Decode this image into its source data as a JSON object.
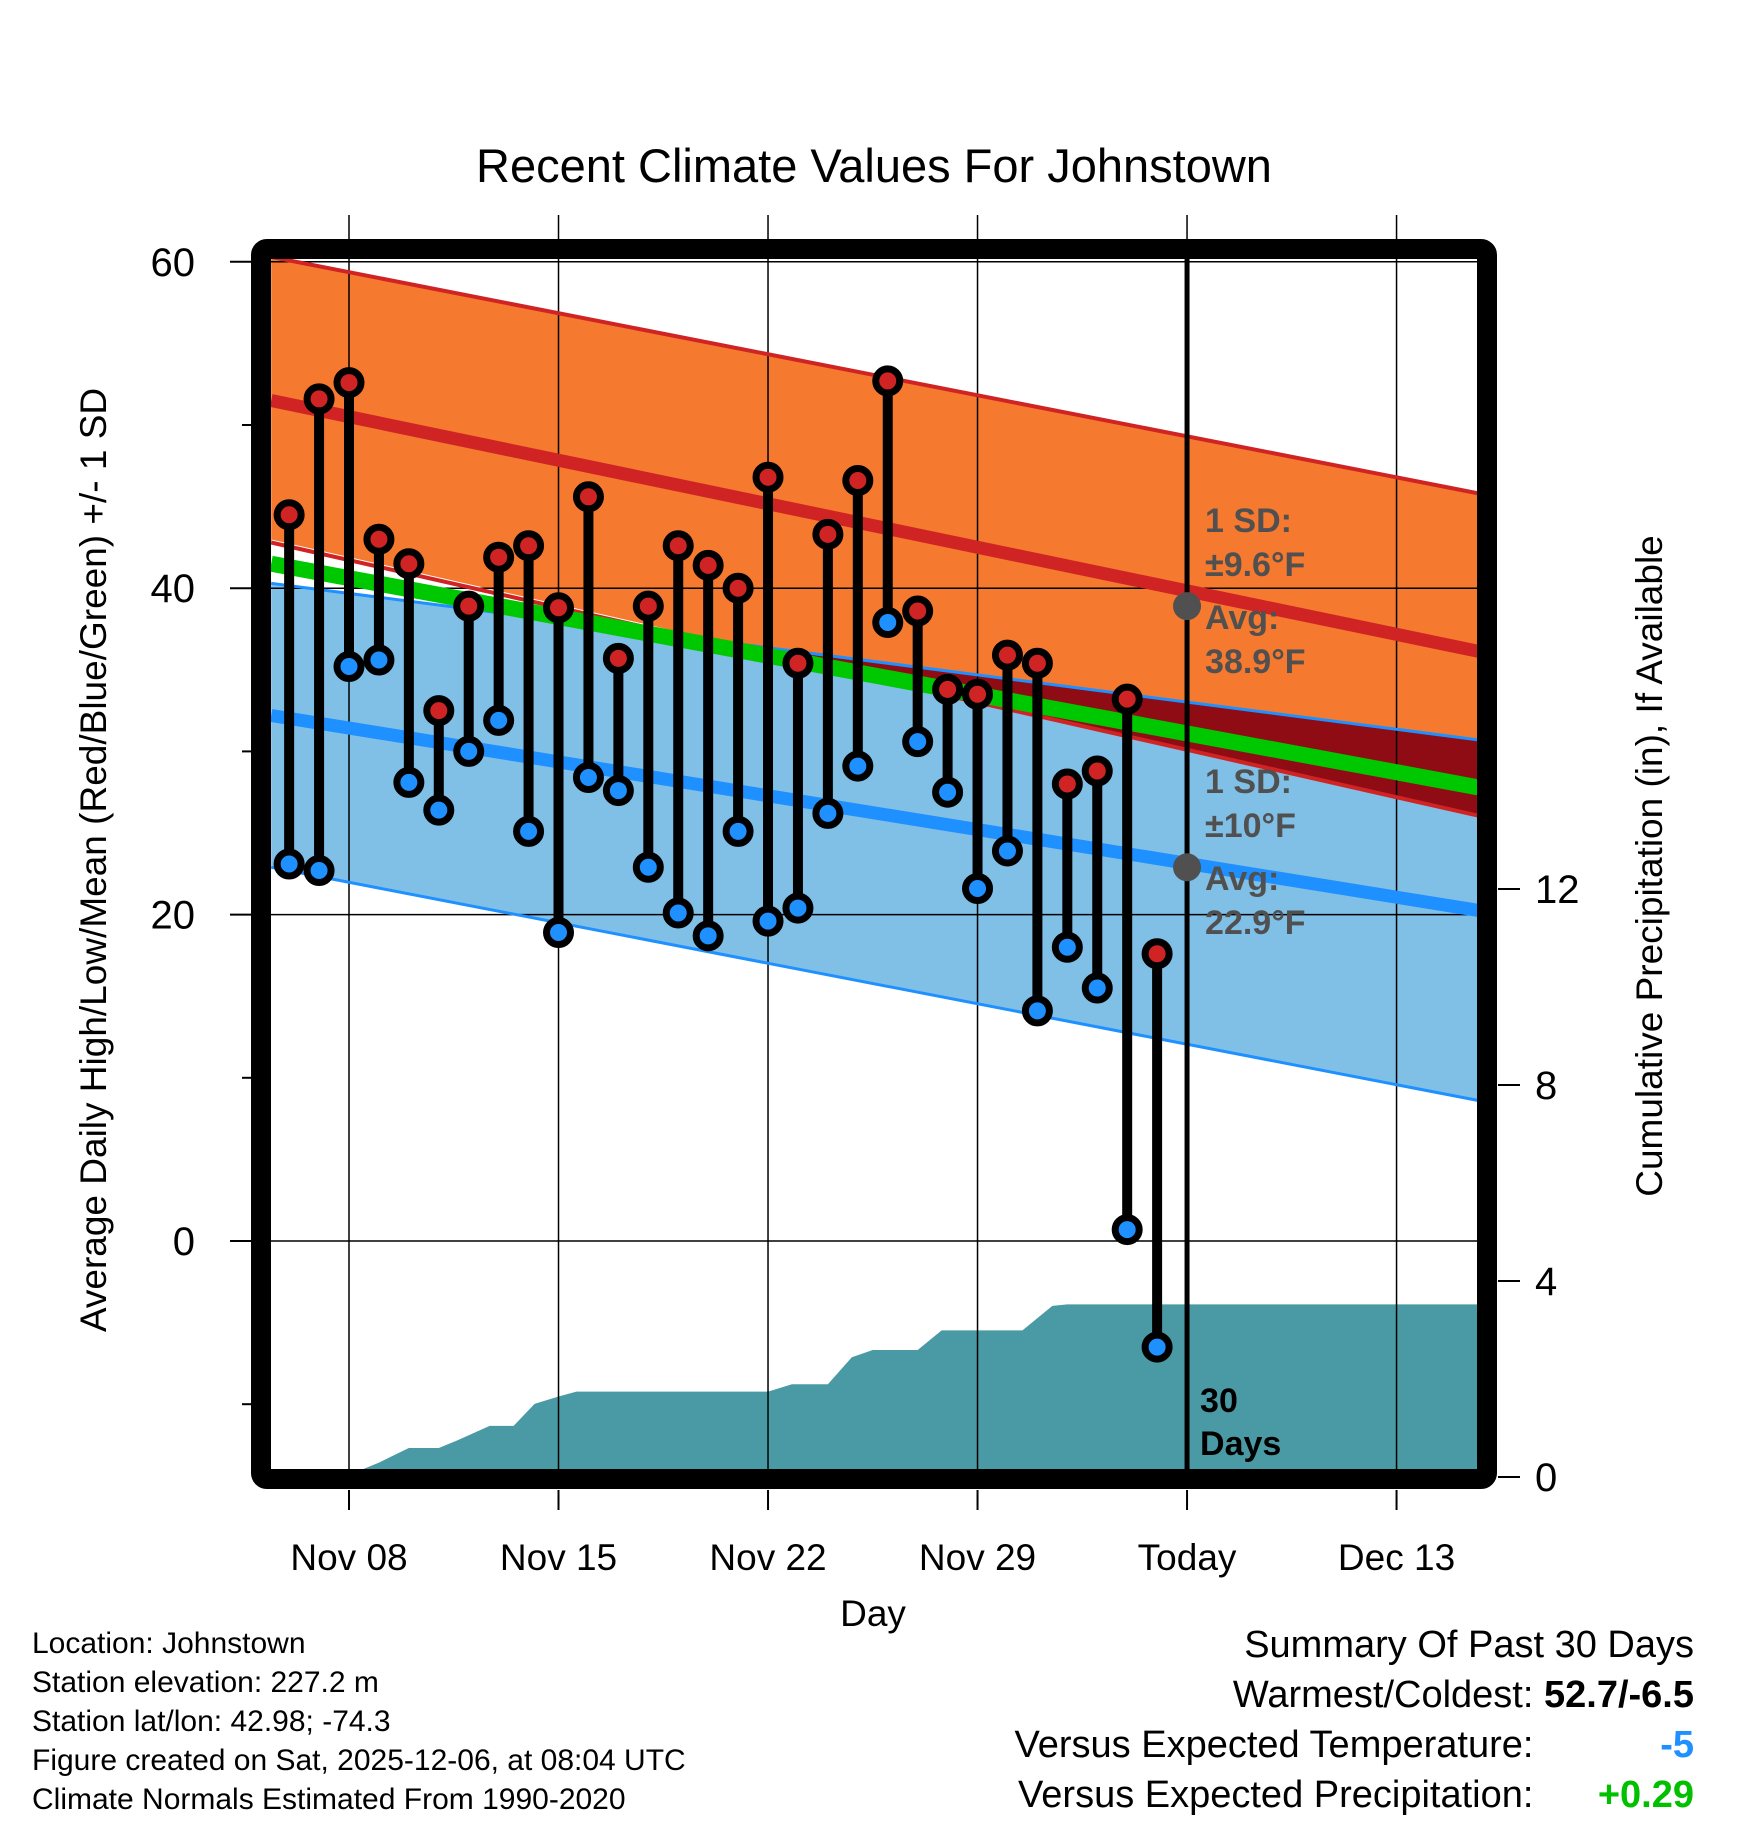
{
  "chart_data": {
    "type": "line",
    "title": "Recent Climate Values For Johnstown",
    "xlabel": "Day",
    "ylabel": "Average Daily High/Low/Mean (Red/Blue/Green) +/- 1 SD",
    "y2label": "Cumulative Precipitation (in), If Available",
    "ylim": [
      -14,
      60
    ],
    "y2lim": [
      0,
      17.5
    ],
    "yticks": [
      0,
      20,
      40,
      60
    ],
    "yminor_ticks": [
      -10,
      10,
      30,
      50
    ],
    "y2ticks": [
      0,
      4,
      8,
      12
    ],
    "x_range_days": [
      -2.6,
      38.6
    ],
    "x_origin_label": "Nov 08",
    "xticks": [
      {
        "day": 0,
        "label": "Nov 08"
      },
      {
        "day": 7,
        "label": "Nov 15"
      },
      {
        "day": 14,
        "label": "Nov 22"
      },
      {
        "day": 21,
        "label": "Nov 29"
      },
      {
        "day": 28,
        "label": "Today"
      },
      {
        "day": 35,
        "label": "Dec 13"
      }
    ],
    "grid": true,
    "today_day": 28,
    "today_label": [
      "30",
      "Days"
    ],
    "normals": {
      "days": [
        -2.6,
        38.6
      ],
      "high_plus_sd": [
        60.3,
        45.5
      ],
      "high_avg": [
        51.5,
        35.8
      ],
      "high_minus_sd": [
        42.8,
        25.7
      ],
      "mean": [
        41.5,
        27.5
      ],
      "low_plus_sd": [
        40.3,
        30.5
      ],
      "low_avg": [
        32.2,
        20.0
      ],
      "low_minus_sd": [
        22.9,
        8.3
      ]
    },
    "annotations": {
      "high": {
        "sd_label": "1 SD:",
        "sd_value": "±9.6°F",
        "avg_label": "Avg:",
        "avg_value": "38.9°F",
        "avg": 38.9
      },
      "low": {
        "sd_label": "1 SD:",
        "sd_value": "±10°F",
        "avg_label": "Avg:",
        "avg_value": "22.9°F",
        "avg": 22.9
      }
    },
    "series": [
      {
        "name": "Daily High",
        "color": "#d02424",
        "days": [
          -2,
          -1,
          0,
          1,
          2,
          3,
          4,
          5,
          6,
          7,
          8,
          9,
          10,
          11,
          12,
          13,
          14,
          15,
          16,
          17,
          18,
          19,
          20,
          21,
          22,
          23,
          24,
          25,
          26,
          27
        ],
        "values": [
          44.5,
          51.6,
          52.6,
          43.0,
          41.5,
          32.5,
          38.9,
          41.9,
          42.6,
          38.8,
          45.6,
          35.7,
          38.9,
          42.6,
          41.4,
          40.0,
          46.8,
          35.4,
          43.3,
          46.6,
          52.7,
          38.6,
          33.8,
          33.5,
          35.9,
          35.4,
          28.0,
          28.8,
          33.2,
          17.6
        ]
      },
      {
        "name": "Daily Low",
        "color": "#1e90ff",
        "days": [
          -2,
          -1,
          0,
          1,
          2,
          3,
          4,
          5,
          6,
          7,
          8,
          9,
          10,
          11,
          12,
          13,
          14,
          15,
          16,
          17,
          18,
          19,
          20,
          21,
          22,
          23,
          24,
          25,
          26,
          27
        ],
        "values": [
          23.1,
          22.7,
          35.2,
          35.6,
          28.1,
          26.4,
          30.0,
          31.9,
          25.1,
          18.9,
          28.4,
          27.6,
          22.9,
          20.1,
          18.7,
          25.1,
          19.6,
          20.4,
          26.2,
          29.1,
          37.9,
          30.6,
          27.5,
          21.6,
          23.9,
          14.1,
          18.0,
          15.5,
          0.7,
          -6.5
        ]
      },
      {
        "name": "Cumulative Precipitation",
        "color": "#4a9aa5",
        "axis": "y2",
        "days": [
          -2.6,
          0.4,
          1,
          1.5,
          2,
          3,
          3.6,
          4.7,
          5.5,
          6.2,
          7,
          7.6,
          8,
          14,
          14.8,
          16,
          16.8,
          17.5,
          18,
          19,
          19.8,
          20.4,
          22.5,
          23.5,
          24,
          28,
          38.6
        ],
        "values": [
          0,
          0,
          0.15,
          0.3,
          0.45,
          0.45,
          0.6,
          0.9,
          0.9,
          1.35,
          1.5,
          1.6,
          1.6,
          1.6,
          1.75,
          1.75,
          2.3,
          2.45,
          2.45,
          2.45,
          2.85,
          2.85,
          2.85,
          3.35,
          3.38,
          3.38,
          3.38
        ]
      }
    ],
    "colors": {
      "high_band": "#f5792e",
      "high_line": "#d02424",
      "low_band": "#80bfe6",
      "low_line": "#1e90ff",
      "mean_line": "#00c800",
      "overlap": "#900c14",
      "precip": "#4a9aa5",
      "annotation": "#505050"
    }
  },
  "footer": {
    "location": "Location: Johnstown",
    "elevation": "Station elevation: 227.2 m",
    "latlon": "Station lat/lon: 42.98; -74.3",
    "created": "Figure created on Sat, 2025-12-06, at 08:04 UTC",
    "normals": "Climate Normals Estimated From 1990-2020"
  },
  "summary": {
    "heading": "Summary Of Past 30 Days",
    "warm_cold_label": "Warmest/Coldest:",
    "warm_cold_value": "52.7/-6.5",
    "temp_label": "Versus Expected Temperature:",
    "temp_value": "-5",
    "temp_color": "#1e90ff",
    "precip_label": "Versus Expected Precipitation:",
    "precip_value": "+0.29",
    "precip_color": "#00c000"
  }
}
